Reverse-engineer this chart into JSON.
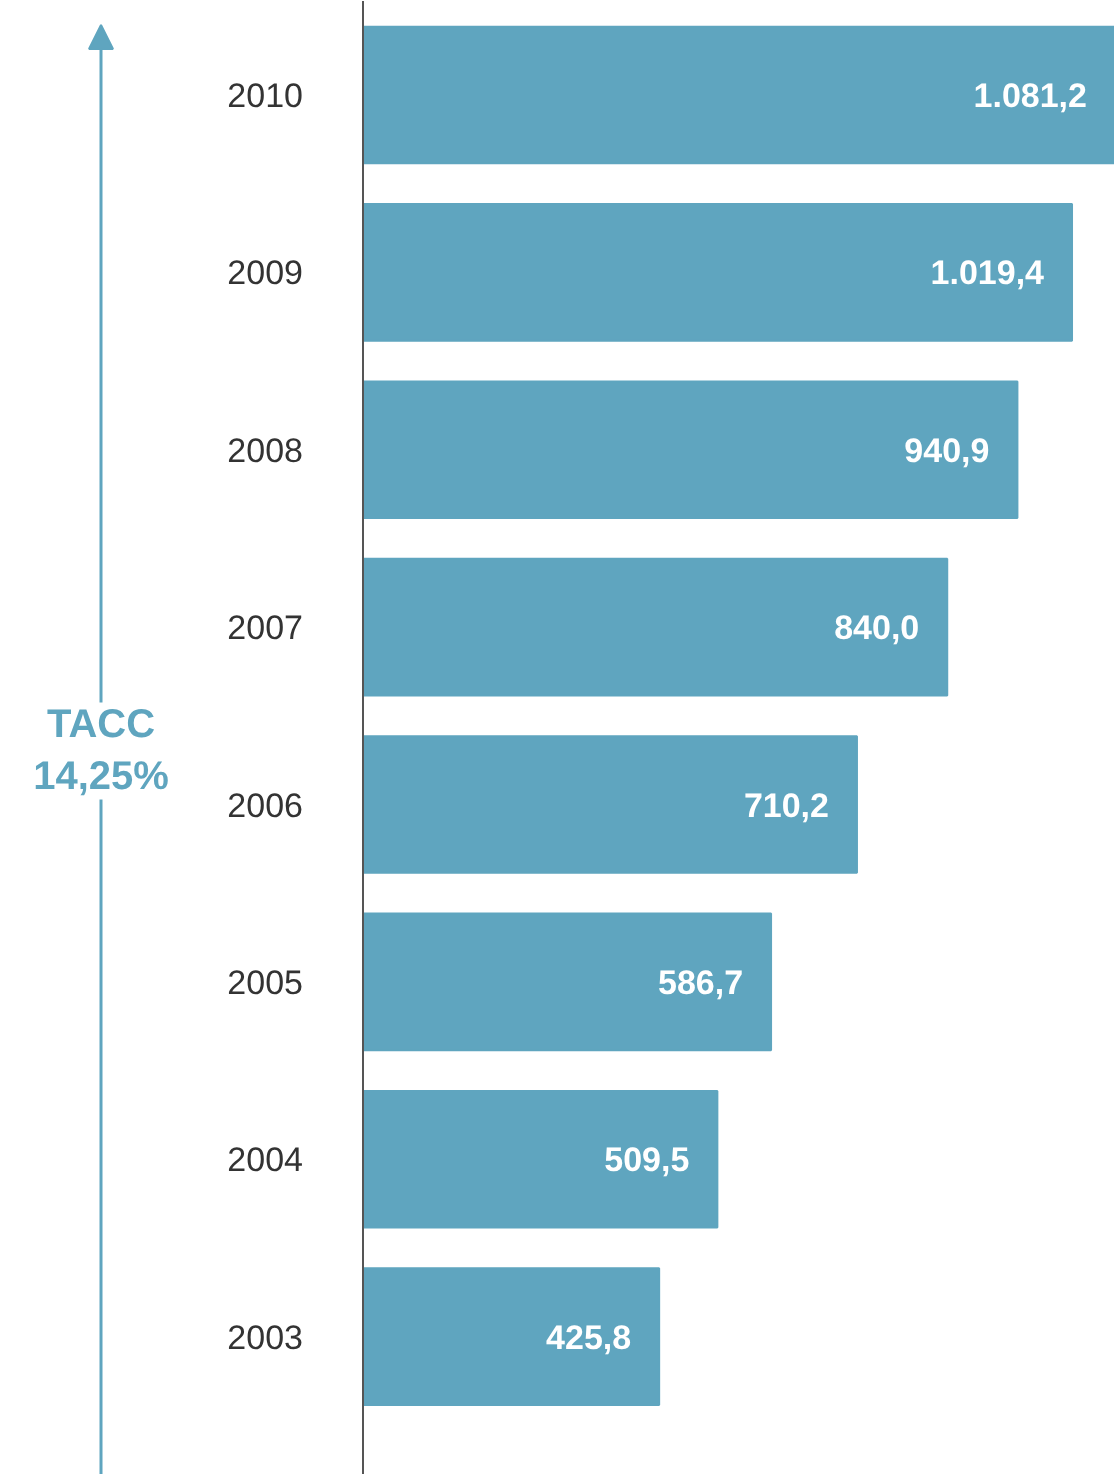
{
  "chart_data": {
    "type": "bar",
    "orientation": "horizontal",
    "categories": [
      "2010",
      "2009",
      "2008",
      "2007",
      "2006",
      "2005",
      "2004",
      "2003"
    ],
    "values": [
      1081.2,
      1019.4,
      940.9,
      840.0,
      710.2,
      586.7,
      509.5,
      425.8
    ],
    "value_labels": [
      "1.081,2",
      "1.019,4",
      "940,9",
      "840,0",
      "710,2",
      "586,7",
      "509,5",
      "425,8"
    ],
    "color": "#5fa5bf",
    "grid": false,
    "annotations": [
      "TACC\n14,25%"
    ]
  }
}
